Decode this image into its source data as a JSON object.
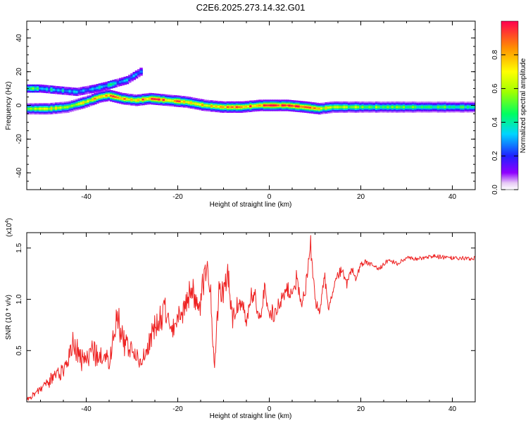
{
  "title": "C2E6.2025.273.14.32.G01",
  "chart_data": [
    {
      "type": "heatmap",
      "xlabel": "Height of straight line (km)",
      "ylabel": "Frequency (Hz)",
      "xlim": [
        -53,
        45
      ],
      "ylim": [
        -50,
        50
      ],
      "xticks": [
        -40,
        -20,
        0,
        20,
        40
      ],
      "yticks": [
        -40,
        -20,
        0,
        20,
        40
      ],
      "colorbar": {
        "label": "Normalized spectral amplitude",
        "range": [
          0,
          1
        ],
        "ticks": [
          "0.0",
          "0.2",
          "0.4",
          "0.6",
          "0.8"
        ],
        "tick_values": [
          0.0,
          0.2,
          0.4,
          0.6,
          0.8
        ]
      },
      "ridge": {
        "x": [
          -53,
          -48,
          -44,
          -40,
          -37,
          -35,
          -32,
          -29,
          -26,
          -22,
          -18,
          -14,
          -10,
          -6,
          -2,
          0,
          4,
          8,
          11,
          14,
          20,
          30,
          44
        ],
        "y": [
          -2,
          -2,
          -1,
          2,
          5,
          6,
          4,
          3,
          4,
          3,
          2,
          0,
          -1,
          -1,
          0,
          0,
          0,
          -1,
          -2,
          -1,
          -1,
          -1,
          -1
        ],
        "amplitude": [
          0.6,
          0.65,
          0.6,
          0.7,
          0.75,
          0.8,
          0.85,
          0.75,
          0.9,
          0.85,
          0.8,
          0.75,
          0.85,
          0.8,
          0.9,
          1.0,
          0.9,
          0.85,
          0.7,
          0.6,
          0.55,
          0.5,
          0.45
        ]
      },
      "secondary_ridge": {
        "x": [
          -53,
          -50,
          -46,
          -42,
          -38,
          -35,
          -31,
          -28
        ],
        "y": [
          10,
          10,
          9,
          8,
          10,
          12,
          15,
          20
        ],
        "amplitude": [
          0.55,
          0.45,
          0.35,
          0.3,
          0.35,
          0.4,
          0.3,
          0.25
        ]
      }
    },
    {
      "type": "line",
      "xlabel": "Height of straight line (km)",
      "ylabel": "SNR (10 * v/v)",
      "exponent_label": "(x10",
      "exponent_power": "4",
      "exponent_close": ")",
      "xlim": [
        -53,
        45
      ],
      "ylim": [
        0,
        16500
      ],
      "xticks": [
        -40,
        -20,
        0,
        20,
        40
      ],
      "yticks": [
        5000,
        10000,
        15000
      ],
      "ytick_labels": [
        "0.5",
        "1.0",
        "1.5"
      ],
      "color": "#ee2222",
      "series": [
        {
          "name": "SNR",
          "x": [
            -53,
            -50,
            -47,
            -44,
            -43,
            -41,
            -39,
            -37,
            -35,
            -33,
            -32,
            -30,
            -28,
            -26,
            -25,
            -23,
            -21,
            -20,
            -18,
            -17,
            -16,
            -15,
            -14,
            -13,
            -12,
            -11,
            -10,
            -9,
            -8,
            -7,
            -6,
            -5,
            -4,
            -3,
            -2,
            -1,
            0,
            1,
            2,
            3,
            4,
            5,
            6,
            7,
            8,
            9,
            10,
            11,
            12,
            13,
            14,
            15,
            16,
            17,
            18,
            19,
            20,
            22,
            24,
            26,
            28,
            30,
            33,
            36,
            40,
            45
          ],
          "y": [
            300,
            1200,
            2500,
            3500,
            6000,
            4000,
            5000,
            4500,
            4000,
            8500,
            6000,
            5000,
            4000,
            6000,
            7500,
            9000,
            7000,
            8500,
            9500,
            11500,
            10000,
            9000,
            13500,
            12500,
            3000,
            11000,
            10500,
            12500,
            8000,
            9500,
            10000,
            7500,
            11000,
            10000,
            8000,
            11000,
            9000,
            8500,
            9500,
            10500,
            11000,
            10000,
            12000,
            9000,
            11500,
            15500,
            10000,
            8500,
            12500,
            9000,
            11000,
            12500,
            13000,
            11500,
            13000,
            12000,
            13500,
            13500,
            13000,
            13800,
            13500,
            14000,
            14000,
            14200,
            14000,
            14000
          ]
        }
      ]
    }
  ]
}
